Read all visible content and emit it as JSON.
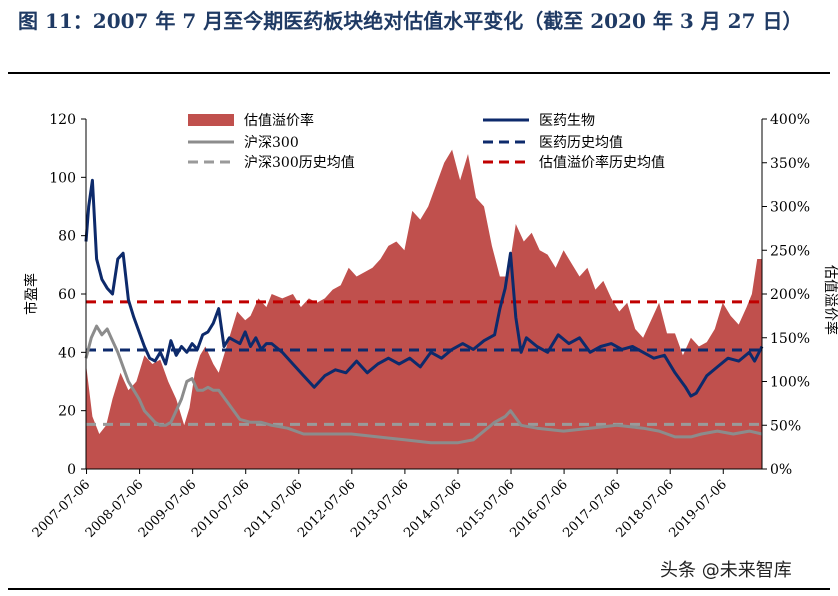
{
  "page": {
    "title": "图 11：2007 年 7 月至今期医药板块绝对估值水平变化（截至 2020 年 3 月 27 日）",
    "watermark": "头条 @未来智库"
  },
  "colors": {
    "premium_fill": "#c0504d",
    "pharma_line": "#0d2a6b",
    "csi300_line": "#8c8c8c",
    "pharma_avg": "#0d2a6b",
    "csi300_avg": "#9a9a9a",
    "premium_avg": "#c00000"
  },
  "chart_data": {
    "type": "line",
    "ylabel_left": "市盈率",
    "ylabel_right": "估值溢价率",
    "ylim_left": [
      0,
      120
    ],
    "yticks_left": [
      "0",
      "20",
      "40",
      "60",
      "80",
      "100",
      "120"
    ],
    "ylim_right": [
      0,
      4.0
    ],
    "yticks_right": [
      "0%",
      "50%",
      "100%",
      "150%",
      "200%",
      "250%",
      "300%",
      "350%",
      "400%"
    ],
    "xlim": [
      2007.5,
      2020.24
    ],
    "xticks": [
      "2007-07-06",
      "2008-07-06",
      "2009-07-06",
      "2010-07-06",
      "2011-07-06",
      "2012-07-06",
      "2013-07-06",
      "2014-07-06",
      "2015-07-06",
      "2016-07-06",
      "2017-07-06",
      "2018-07-06",
      "2019-07-06"
    ],
    "legend_position": "top",
    "series": [
      {
        "name": "估值溢价率",
        "kind": "area",
        "axis": "right",
        "x": [
          2007.5,
          2007.62,
          2007.75,
          2007.88,
          2008.0,
          2008.15,
          2008.3,
          2008.45,
          2008.6,
          2008.75,
          2008.9,
          2009.05,
          2009.2,
          2009.35,
          2009.45,
          2009.55,
          2009.65,
          2009.75,
          2009.9,
          2010.0,
          2010.15,
          2010.25,
          2010.35,
          2010.5,
          2010.6,
          2010.75,
          2010.9,
          2011.0,
          2011.2,
          2011.4,
          2011.55,
          2011.7,
          2011.85,
          2012.0,
          2012.15,
          2012.3,
          2012.45,
          2012.6,
          2012.75,
          2012.9,
          2013.05,
          2013.2,
          2013.35,
          2013.5,
          2013.65,
          2013.8,
          2013.95,
          2014.1,
          2014.25,
          2014.4,
          2014.55,
          2014.7,
          2014.85,
          2015.0,
          2015.15,
          2015.3,
          2015.45,
          2015.6,
          2015.75,
          2015.9,
          2016.05,
          2016.2,
          2016.35,
          2016.5,
          2016.65,
          2016.8,
          2016.95,
          2017.1,
          2017.25,
          2017.4,
          2017.55,
          2017.7,
          2017.85,
          2018.0,
          2018.15,
          2018.3,
          2018.45,
          2018.6,
          2018.75,
          2018.9,
          2019.05,
          2019.2,
          2019.35,
          2019.5,
          2019.65,
          2019.8,
          2019.95,
          2020.05,
          2020.15,
          2020.24
        ],
        "values": [
          1.2,
          0.6,
          0.4,
          0.5,
          0.8,
          1.1,
          0.9,
          1.0,
          1.3,
          1.2,
          1.25,
          1.0,
          0.8,
          0.5,
          0.7,
          1.1,
          1.3,
          1.4,
          1.2,
          1.1,
          1.4,
          1.6,
          1.8,
          1.7,
          1.75,
          1.95,
          1.85,
          2.0,
          1.95,
          2.0,
          1.85,
          1.95,
          1.9,
          1.95,
          2.05,
          2.1,
          2.3,
          2.2,
          2.25,
          2.3,
          2.4,
          2.55,
          2.6,
          2.5,
          2.95,
          2.85,
          3.0,
          3.25,
          3.5,
          3.65,
          3.3,
          3.6,
          3.1,
          3.0,
          2.55,
          2.2,
          2.2,
          2.8,
          2.6,
          2.7,
          2.5,
          2.45,
          2.3,
          2.5,
          2.35,
          2.2,
          2.3,
          2.05,
          2.15,
          1.95,
          1.8,
          1.9,
          1.6,
          1.5,
          1.7,
          1.9,
          1.55,
          1.55,
          1.3,
          1.5,
          1.4,
          1.45,
          1.6,
          1.9,
          1.75,
          1.65,
          1.85,
          2.0,
          2.4,
          2.4
        ]
      },
      {
        "name": "医药生物",
        "kind": "line",
        "axis": "left",
        "x": [
          2007.5,
          2007.55,
          2007.62,
          2007.7,
          2007.8,
          2007.9,
          2008.0,
          2008.1,
          2008.2,
          2008.3,
          2008.4,
          2008.5,
          2008.6,
          2008.7,
          2008.8,
          2008.9,
          2009.0,
          2009.1,
          2009.2,
          2009.3,
          2009.4,
          2009.5,
          2009.6,
          2009.7,
          2009.8,
          2009.9,
          2010.0,
          2010.1,
          2010.2,
          2010.3,
          2010.4,
          2010.5,
          2010.6,
          2010.7,
          2010.8,
          2010.9,
          2011.0,
          2011.2,
          2011.4,
          2011.6,
          2011.8,
          2012.0,
          2012.2,
          2012.4,
          2012.6,
          2012.8,
          2013.0,
          2013.2,
          2013.4,
          2013.6,
          2013.8,
          2014.0,
          2014.2,
          2014.4,
          2014.6,
          2014.8,
          2015.0,
          2015.2,
          2015.3,
          2015.4,
          2015.5,
          2015.6,
          2015.7,
          2015.8,
          2016.0,
          2016.2,
          2016.4,
          2016.6,
          2016.8,
          2017.0,
          2017.2,
          2017.4,
          2017.6,
          2017.8,
          2018.0,
          2018.2,
          2018.4,
          2018.6,
          2018.8,
          2018.9,
          2019.0,
          2019.2,
          2019.4,
          2019.6,
          2019.8,
          2020.0,
          2020.1,
          2020.24
        ],
        "values": [
          78,
          90,
          99,
          72,
          65,
          62,
          60,
          72,
          74,
          58,
          52,
          47,
          42,
          38,
          37,
          40,
          36,
          44,
          39,
          42,
          40,
          43,
          41,
          46,
          47,
          50,
          55,
          42,
          45,
          44,
          43,
          47,
          42,
          45,
          41,
          43,
          43,
          40,
          36,
          32,
          28,
          32,
          34,
          33,
          37,
          33,
          36,
          38,
          36,
          38,
          35,
          40,
          38,
          41,
          43,
          41,
          44,
          46,
          55,
          62,
          74,
          52,
          40,
          45,
          42,
          40,
          46,
          43,
          45,
          40,
          42,
          43,
          41,
          42,
          40,
          38,
          39,
          33,
          28,
          25,
          26,
          32,
          35,
          38,
          37,
          40,
          37,
          42
        ]
      },
      {
        "name": "沪深300",
        "kind": "line",
        "axis": "left",
        "x": [
          2007.5,
          2007.6,
          2007.7,
          2007.8,
          2007.9,
          2008.0,
          2008.1,
          2008.2,
          2008.3,
          2008.4,
          2008.5,
          2008.6,
          2008.7,
          2008.8,
          2008.9,
          2009.0,
          2009.1,
          2009.2,
          2009.3,
          2009.4,
          2009.5,
          2009.6,
          2009.7,
          2009.8,
          2009.9,
          2010.0,
          2010.2,
          2010.4,
          2010.6,
          2010.8,
          2011.0,
          2011.3,
          2011.6,
          2012.0,
          2012.5,
          2013.0,
          2013.5,
          2014.0,
          2014.5,
          2014.8,
          2015.0,
          2015.2,
          2015.4,
          2015.5,
          2015.7,
          2016.0,
          2016.5,
          2017.0,
          2017.5,
          2018.0,
          2018.3,
          2018.6,
          2018.9,
          2019.1,
          2019.4,
          2019.7,
          2020.0,
          2020.24
        ],
        "values": [
          38,
          45,
          49,
          46,
          48,
          44,
          40,
          35,
          30,
          27,
          24,
          20,
          18,
          16,
          15,
          15,
          16,
          20,
          24,
          30,
          31,
          27,
          27,
          28,
          27,
          27,
          22,
          17,
          16,
          16,
          15,
          14,
          12,
          12,
          12,
          11,
          10,
          9,
          9,
          10,
          13,
          16,
          18,
          20,
          15,
          14,
          13,
          14,
          15,
          14,
          13,
          11,
          11,
          12,
          13,
          12,
          13,
          12
        ]
      },
      {
        "name": "沪深300历史均值",
        "kind": "hline",
        "axis": "left",
        "values": [
          15.3
        ]
      },
      {
        "name": "医药历史均值",
        "kind": "hline",
        "axis": "left",
        "values": [
          40.8
        ]
      },
      {
        "name": "估值溢价率历史均值",
        "kind": "hline",
        "axis": "right",
        "values": [
          1.91
        ]
      }
    ]
  }
}
